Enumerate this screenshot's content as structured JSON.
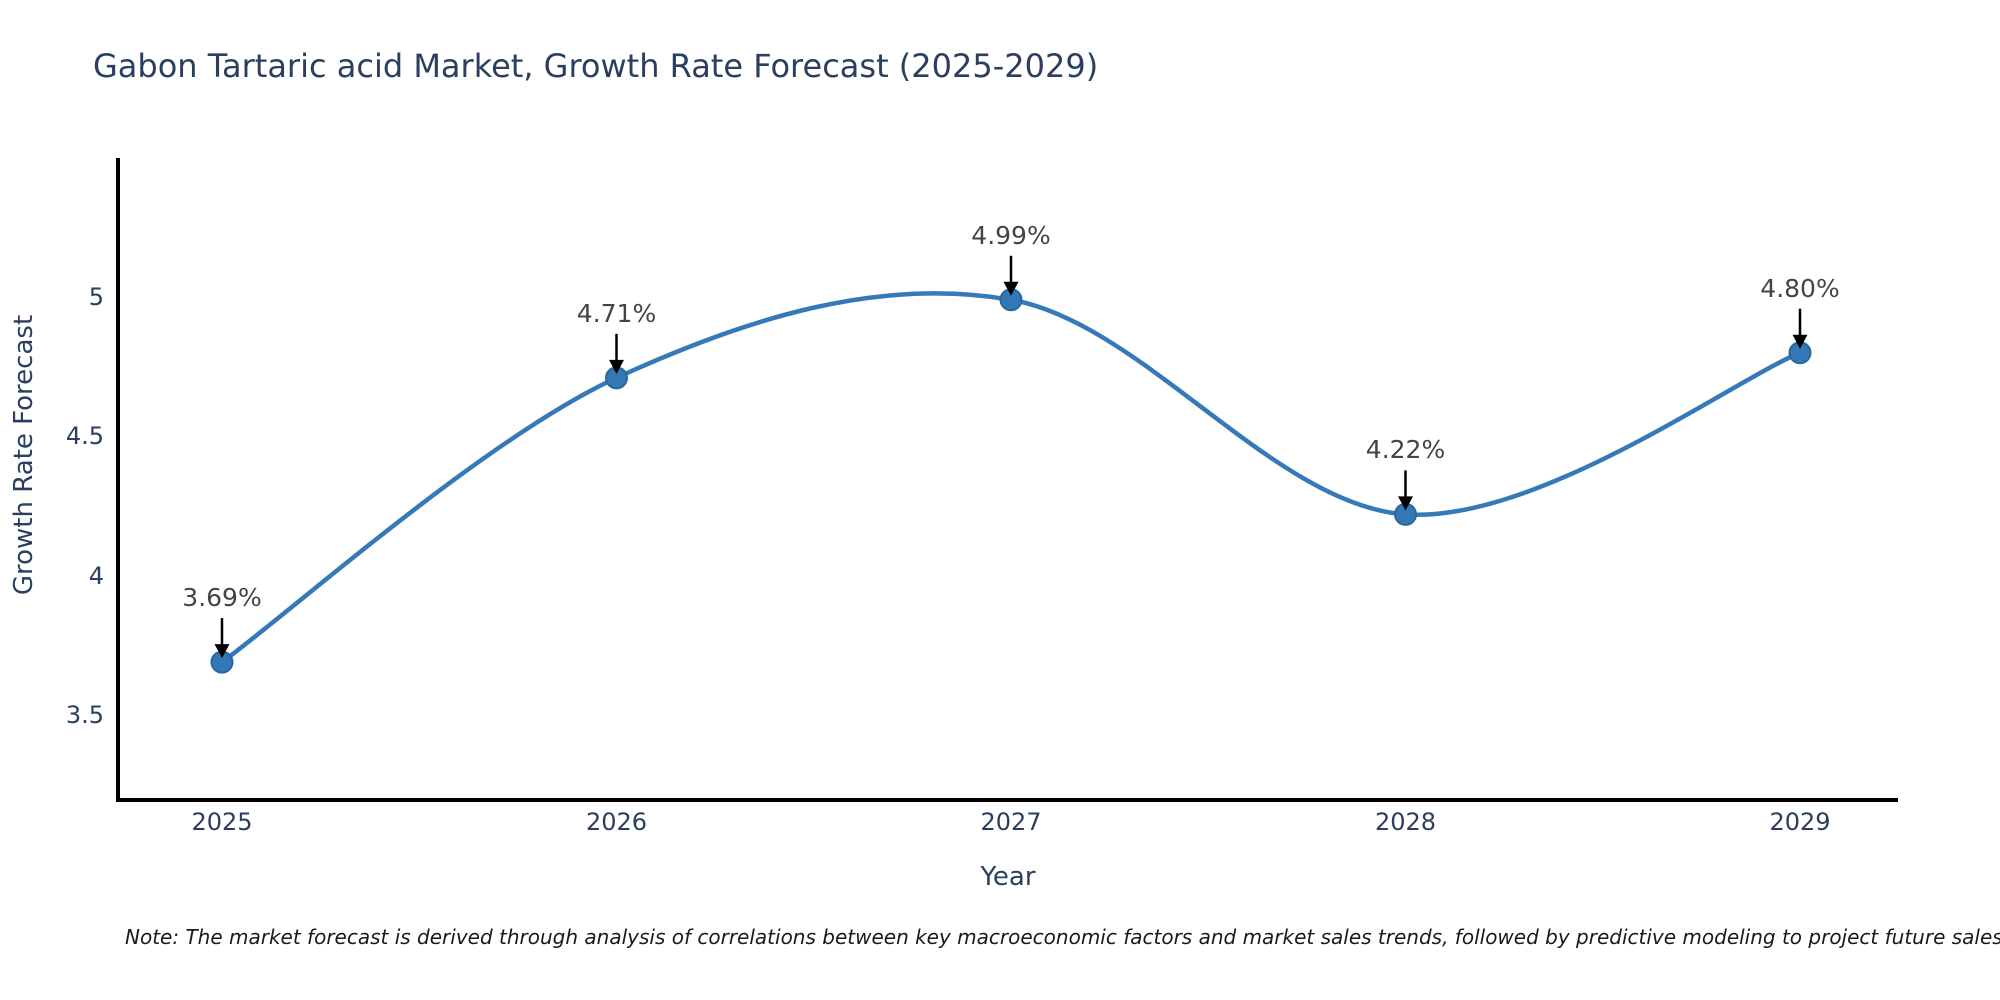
{
  "title": "Gabon Tartaric acid Market, Growth Rate Forecast (2025-2029)",
  "note": "Note: The market forecast is derived through analysis of correlations between key macroeconomic factors and market sales trends, followed by predictive modeling to project future sales",
  "chart_data": {
    "type": "line",
    "curve": "spline",
    "title": "Gabon Tartaric acid Market, Growth Rate Forecast (2025-2029)",
    "xlabel": "Year",
    "ylabel": "Growth Rate Forecast",
    "categories": [
      "2025",
      "2026",
      "2027",
      "2028",
      "2029"
    ],
    "series": [
      {
        "name": "Growth Rate Forecast",
        "values": [
          3.69,
          4.71,
          4.99,
          4.22,
          4.8
        ]
      }
    ],
    "point_labels": [
      "3.69%",
      "4.71%",
      "4.99%",
      "4.22%",
      "4.80%"
    ],
    "yticks": [
      3.5,
      4,
      4.5,
      5
    ],
    "ytick_labels": [
      "3.5",
      "4",
      "4.5",
      "5"
    ],
    "ylim": [
      3.2,
      5.5
    ],
    "grid": false,
    "legend": "none",
    "colors": {
      "line": "#3579b8",
      "marker_fill": "#3477b5",
      "marker_edge": "#2b66a0",
      "axis": "#000000",
      "arrow": "#000000",
      "title_text": "#2a3f5f",
      "annotation_text": "#444444",
      "note_text": "#1a1a1a",
      "background": "#ffffff"
    }
  }
}
